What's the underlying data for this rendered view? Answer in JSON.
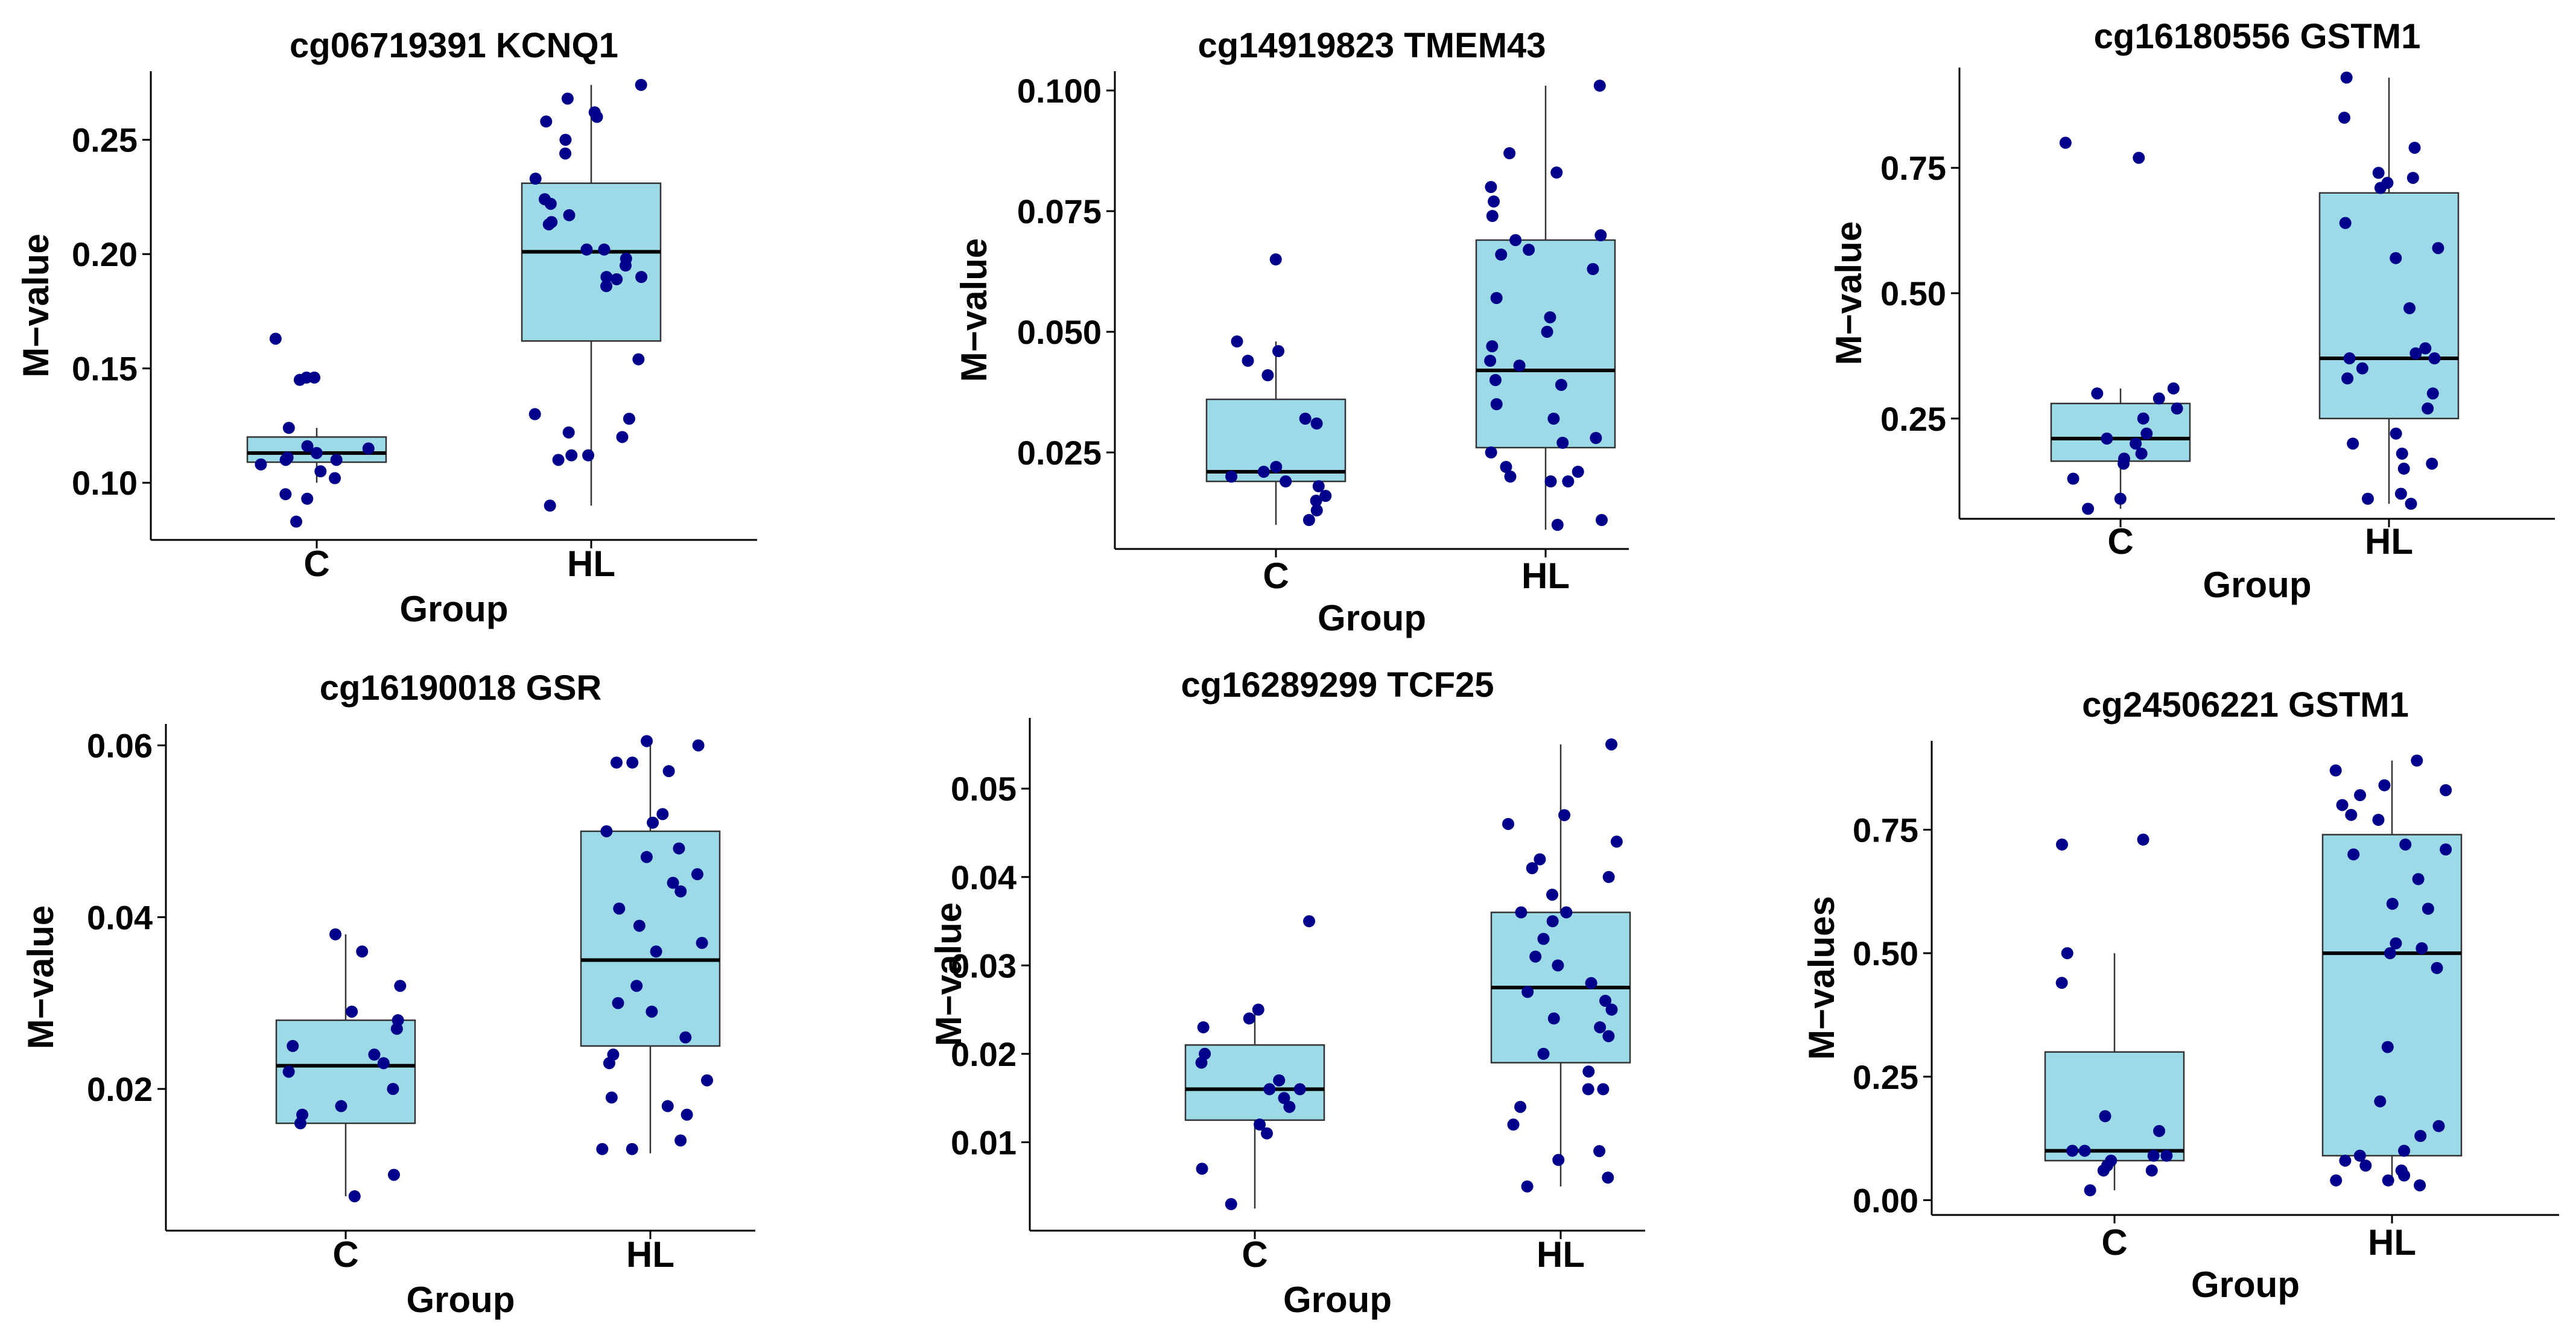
{
  "colors": {
    "box_fill": "#9ddae8",
    "point": "#00008b",
    "axis": "#000000"
  },
  "chart_data": [
    {
      "type": "box",
      "title": "cg06719391 KCNQ1",
      "xlabel": "Group",
      "ylabel": "M−value",
      "ylim": [
        0.075,
        0.28
      ],
      "yticks": [
        "0.10",
        "0.15",
        "0.20",
        "0.25"
      ],
      "categories": [
        "C",
        "HL"
      ],
      "boxes": [
        {
          "group": "C",
          "min": 0.1,
          "q1": 0.109,
          "median": 0.113,
          "q3": 0.12,
          "max": 0.124
        },
        {
          "group": "HL",
          "min": 0.09,
          "q1": 0.162,
          "median": 0.201,
          "q3": 0.231,
          "max": 0.274
        }
      ],
      "points": [
        {
          "group": "C",
          "values": [
            0.163,
            0.146,
            0.145,
            0.146,
            0.124,
            0.116,
            0.113,
            0.115,
            0.111,
            0.11,
            0.108,
            0.11,
            0.105,
            0.102,
            0.093,
            0.095,
            0.083
          ]
        },
        {
          "group": "HL",
          "values": [
            0.274,
            0.268,
            0.262,
            0.26,
            0.258,
            0.25,
            0.244,
            0.233,
            0.222,
            0.224,
            0.217,
            0.214,
            0.213,
            0.202,
            0.202,
            0.198,
            0.195,
            0.19,
            0.19,
            0.189,
            0.186,
            0.154,
            0.13,
            0.128,
            0.122,
            0.12,
            0.112,
            0.112,
            0.11,
            0.09
          ]
        }
      ]
    },
    {
      "type": "box",
      "title": "cg14919823 TMEM43",
      "xlabel": "Group",
      "ylabel": "M−value",
      "ylim": [
        0.005,
        0.104
      ],
      "yticks": [
        "0.025",
        "0.050",
        "0.075",
        "0.100"
      ],
      "categories": [
        "C",
        "HL"
      ],
      "boxes": [
        {
          "group": "C",
          "min": 0.01,
          "q1": 0.019,
          "median": 0.021,
          "q3": 0.036,
          "max": 0.048
        },
        {
          "group": "HL",
          "min": 0.009,
          "q1": 0.026,
          "median": 0.042,
          "q3": 0.069,
          "max": 0.101
        }
      ],
      "points": [
        {
          "group": "C",
          "values": [
            0.065,
            0.048,
            0.046,
            0.044,
            0.041,
            0.032,
            0.031,
            0.022,
            0.021,
            0.02,
            0.019,
            0.018,
            0.016,
            0.015,
            0.013,
            0.011
          ]
        },
        {
          "group": "HL",
          "values": [
            0.101,
            0.087,
            0.083,
            0.08,
            0.077,
            0.074,
            0.07,
            0.069,
            0.067,
            0.066,
            0.063,
            0.057,
            0.053,
            0.05,
            0.047,
            0.044,
            0.043,
            0.04,
            0.039,
            0.035,
            0.032,
            0.028,
            0.027,
            0.025,
            0.022,
            0.021,
            0.02,
            0.019,
            0.019,
            0.011,
            0.01
          ]
        }
      ]
    },
    {
      "type": "box",
      "title": "cg16180556 GSTM1",
      "xlabel": "Group",
      "ylabel": "M−value",
      "ylim": [
        0.05,
        0.95
      ],
      "yticks": [
        "0.25",
        "0.50",
        "0.75"
      ],
      "categories": [
        "C",
        "HL"
      ],
      "boxes": [
        {
          "group": "C",
          "min": 0.07,
          "q1": 0.165,
          "median": 0.21,
          "q3": 0.28,
          "max": 0.31
        },
        {
          "group": "HL",
          "min": 0.08,
          "q1": 0.25,
          "median": 0.37,
          "q3": 0.7,
          "max": 0.93
        }
      ],
      "points": [
        {
          "group": "C",
          "values": [
            0.8,
            0.77,
            0.31,
            0.3,
            0.29,
            0.27,
            0.25,
            0.22,
            0.21,
            0.2,
            0.18,
            0.17,
            0.16,
            0.13,
            0.09,
            0.07
          ]
        },
        {
          "group": "HL",
          "values": [
            0.93,
            0.85,
            0.79,
            0.74,
            0.73,
            0.72,
            0.71,
            0.64,
            0.59,
            0.57,
            0.47,
            0.39,
            0.38,
            0.37,
            0.37,
            0.35,
            0.33,
            0.3,
            0.27,
            0.22,
            0.2,
            0.18,
            0.16,
            0.15,
            0.1,
            0.09,
            0.08
          ]
        }
      ]
    },
    {
      "type": "box",
      "title": "cg16190018 GSR",
      "xlabel": "Group",
      "ylabel": "M−value",
      "ylim": [
        0.0035,
        0.0625
      ],
      "yticks": [
        "0.02",
        "0.04",
        "0.06"
      ],
      "categories": [
        "C",
        "HL"
      ],
      "boxes": [
        {
          "group": "C",
          "min": 0.0075,
          "q1": 0.016,
          "median": 0.0227,
          "q3": 0.028,
          "max": 0.038
        },
        {
          "group": "HL",
          "min": 0.0125,
          "q1": 0.025,
          "median": 0.035,
          "q3": 0.05,
          "max": 0.0605
        }
      ],
      "points": [
        {
          "group": "C",
          "values": [
            0.038,
            0.036,
            0.032,
            0.029,
            0.028,
            0.027,
            0.025,
            0.024,
            0.023,
            0.022,
            0.02,
            0.018,
            0.017,
            0.016,
            0.01,
            0.0075
          ]
        },
        {
          "group": "HL",
          "values": [
            0.0605,
            0.06,
            0.058,
            0.058,
            0.057,
            0.052,
            0.051,
            0.05,
            0.048,
            0.047,
            0.045,
            0.044,
            0.043,
            0.041,
            0.039,
            0.037,
            0.036,
            0.032,
            0.03,
            0.029,
            0.026,
            0.024,
            0.023,
            0.021,
            0.019,
            0.018,
            0.017,
            0.014,
            0.013,
            0.013
          ]
        }
      ]
    },
    {
      "type": "box",
      "title": "cg16289299 TCF25",
      "xlabel": "Group",
      "ylabel": "M−value",
      "ylim": [
        0.0,
        0.058
      ],
      "yticks": [
        "0.01",
        "0.02",
        "0.03",
        "0.04",
        "0.05"
      ],
      "categories": [
        "C",
        "HL"
      ],
      "boxes": [
        {
          "group": "C",
          "min": 0.0025,
          "q1": 0.0125,
          "median": 0.016,
          "q3": 0.021,
          "max": 0.025
        },
        {
          "group": "HL",
          "min": 0.005,
          "q1": 0.019,
          "median": 0.0275,
          "q3": 0.036,
          "max": 0.055
        }
      ],
      "points": [
        {
          "group": "C",
          "values": [
            0.035,
            0.025,
            0.024,
            0.023,
            0.02,
            0.019,
            0.017,
            0.016,
            0.016,
            0.015,
            0.014,
            0.012,
            0.011,
            0.007,
            0.003
          ]
        },
        {
          "group": "HL",
          "values": [
            0.055,
            0.047,
            0.046,
            0.044,
            0.042,
            0.041,
            0.04,
            0.038,
            0.036,
            0.036,
            0.035,
            0.033,
            0.031,
            0.03,
            0.028,
            0.027,
            0.026,
            0.025,
            0.024,
            0.023,
            0.022,
            0.02,
            0.018,
            0.016,
            0.016,
            0.014,
            0.012,
            0.009,
            0.008,
            0.006,
            0.005
          ]
        }
      ]
    },
    {
      "type": "box",
      "title": "cg24506221 GSTM1",
      "xlabel": "Group",
      "ylabel": "M−values",
      "ylim": [
        -0.03,
        0.93
      ],
      "yticks": [
        "0.00",
        "0.25",
        "0.50",
        "0.75"
      ],
      "categories": [
        "C",
        "HL"
      ],
      "boxes": [
        {
          "group": "C",
          "min": 0.02,
          "q1": 0.08,
          "median": 0.1,
          "q3": 0.3,
          "max": 0.5
        },
        {
          "group": "HL",
          "min": 0.03,
          "q1": 0.09,
          "median": 0.5,
          "q3": 0.74,
          "max": 0.89
        }
      ],
      "points": [
        {
          "group": "C",
          "values": [
            0.73,
            0.72,
            0.5,
            0.44,
            0.17,
            0.14,
            0.1,
            0.1,
            0.09,
            0.09,
            0.08,
            0.07,
            0.06,
            0.06,
            0.02
          ]
        },
        {
          "group": "HL",
          "values": [
            0.89,
            0.87,
            0.84,
            0.83,
            0.82,
            0.8,
            0.78,
            0.77,
            0.72,
            0.71,
            0.7,
            0.65,
            0.6,
            0.59,
            0.52,
            0.51,
            0.5,
            0.47,
            0.31,
            0.2,
            0.15,
            0.13,
            0.1,
            0.09,
            0.08,
            0.07,
            0.06,
            0.05,
            0.04,
            0.04,
            0.03
          ]
        }
      ]
    }
  ]
}
